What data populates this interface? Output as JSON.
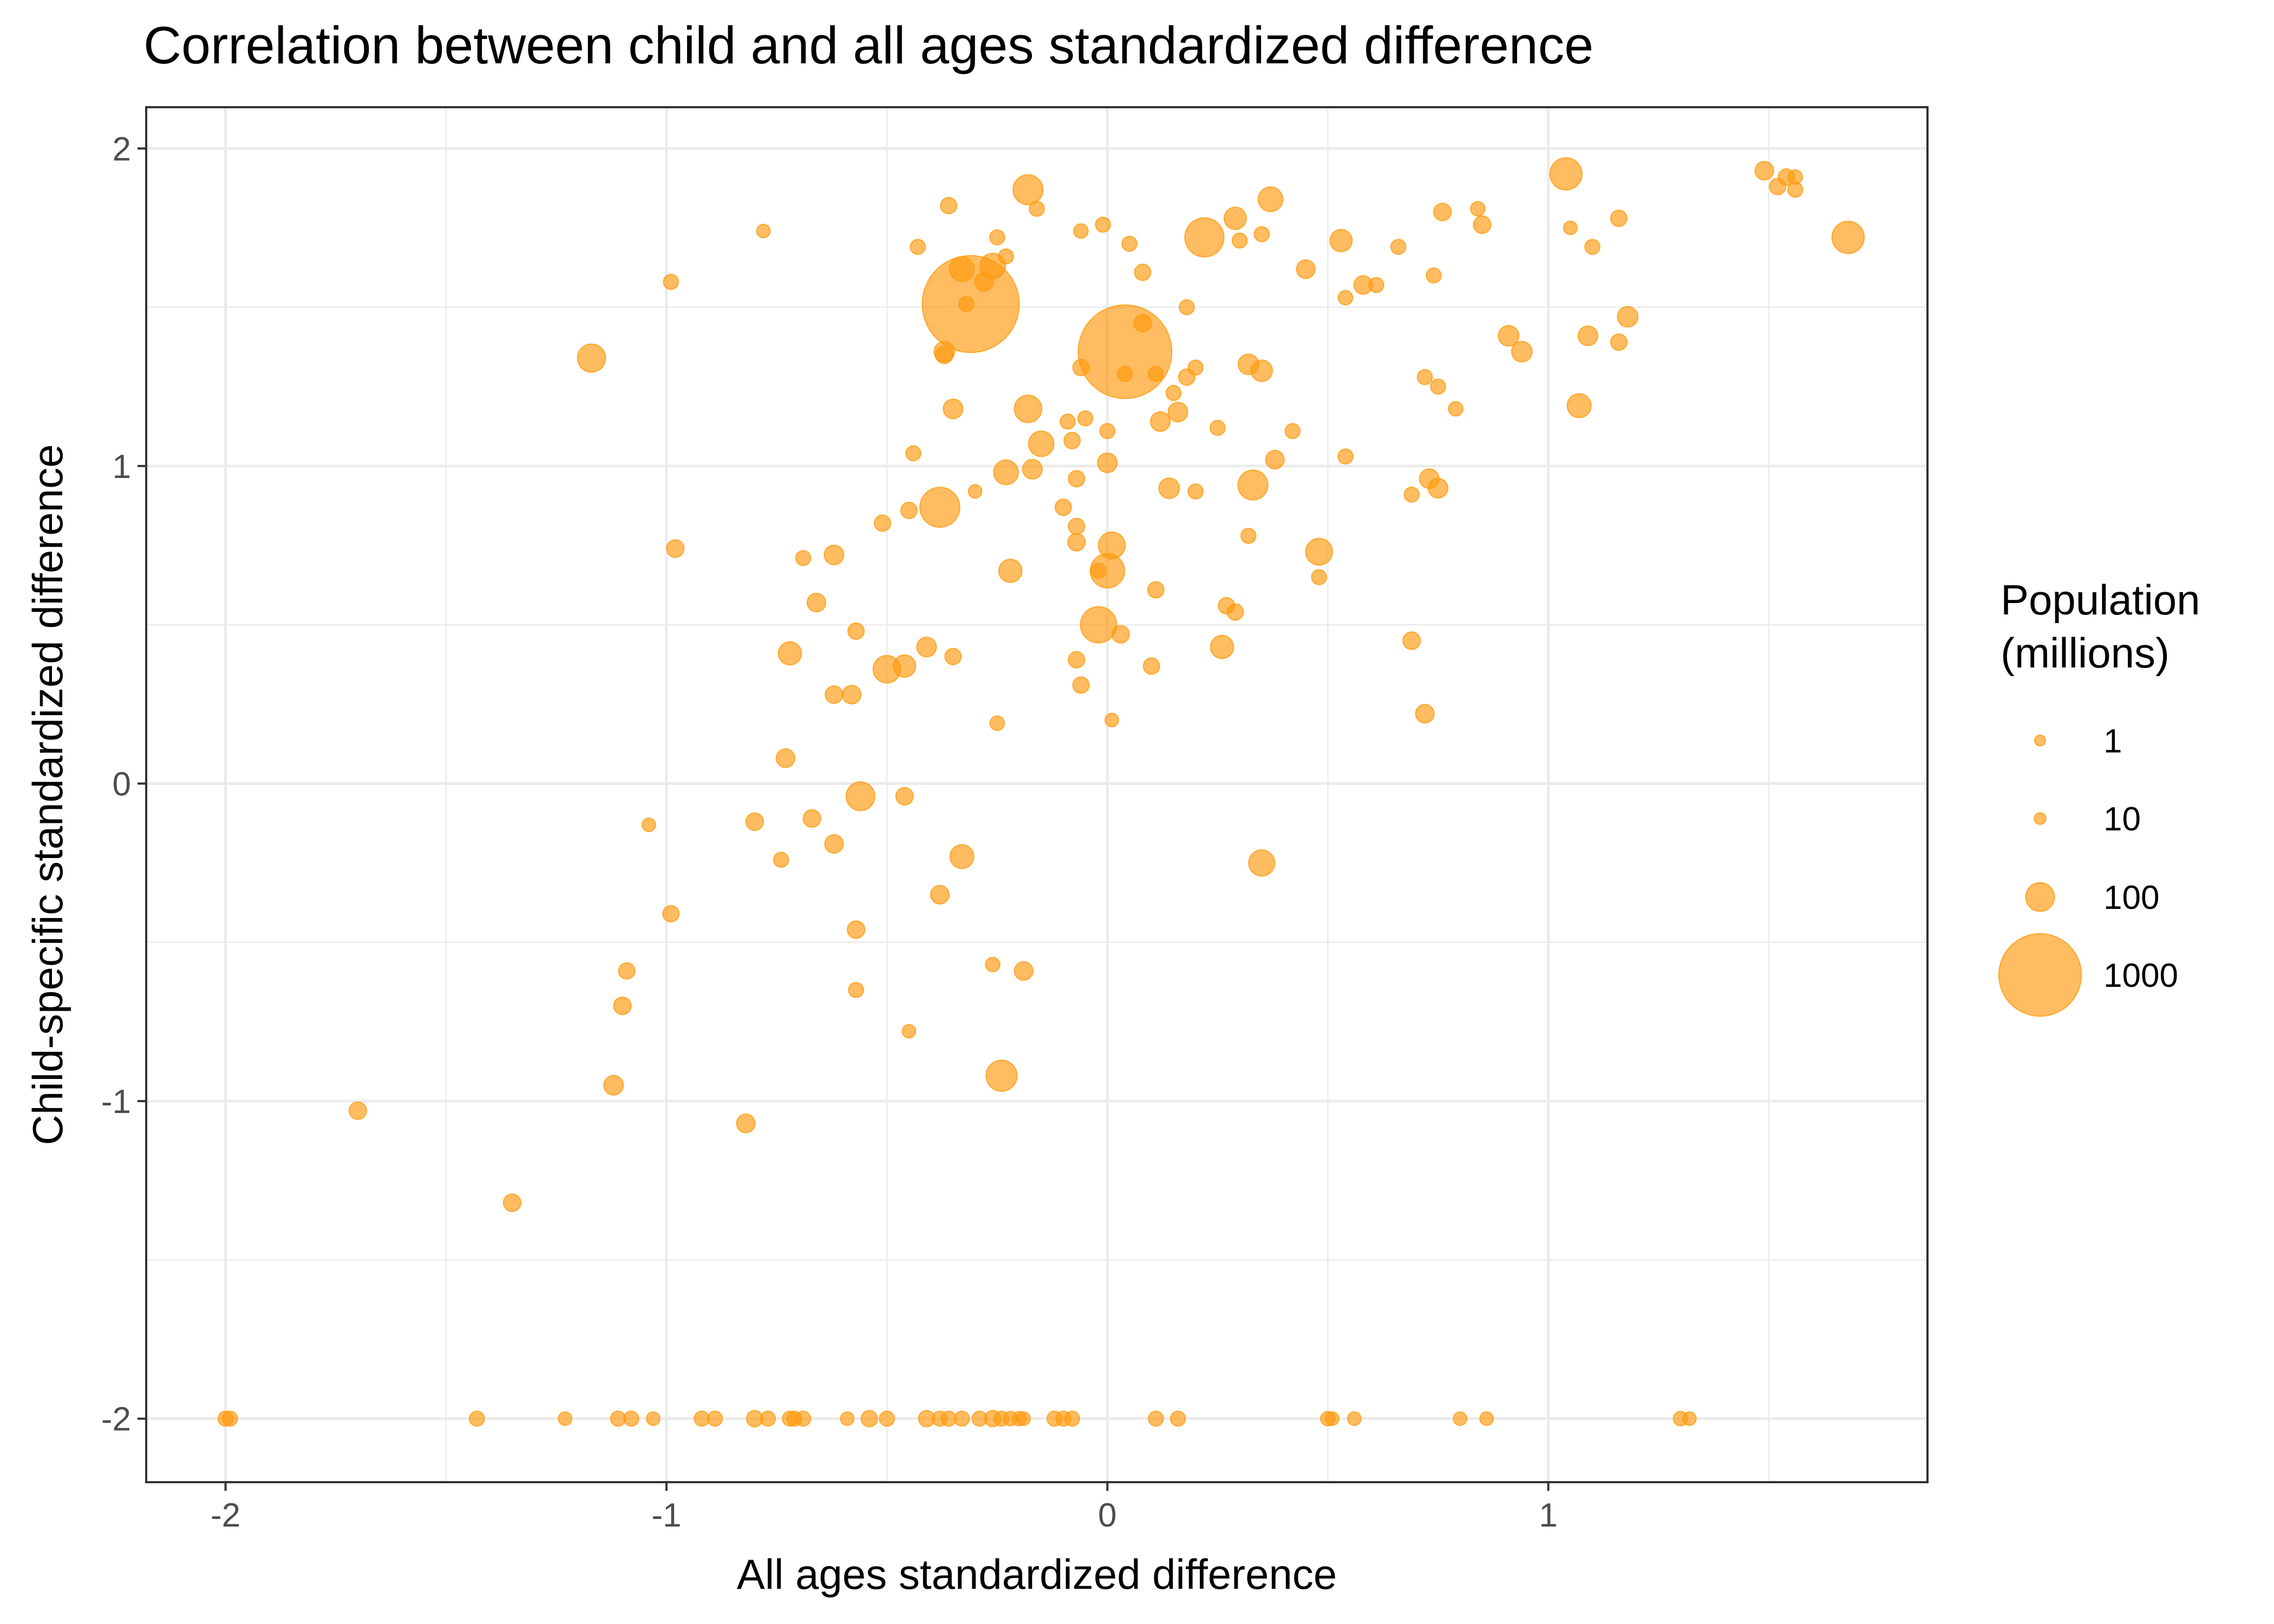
{
  "chart_data": {
    "type": "scatter",
    "title": "Correlation between child and all ages standardized difference",
    "xlabel": "All ages standardized difference",
    "ylabel": "Child-specific standardized difference",
    "xlim": [
      -2.18,
      1.86
    ],
    "ylim": [
      -2.2,
      2.13
    ],
    "x_ticks": [
      -2,
      -1,
      0,
      1
    ],
    "x_tick_labels": [
      "-2",
      "-1",
      "0",
      "1"
    ],
    "y_ticks": [
      2,
      1,
      0,
      -1,
      -2
    ],
    "y_tick_labels": [
      "2",
      "1",
      "0",
      "-1",
      "-2"
    ],
    "grid": true,
    "point_color": "#ff9a0e",
    "legend": {
      "title_lines": [
        "Population",
        "(millions)"
      ],
      "position": "right",
      "entries": [
        {
          "label": "1",
          "size": 1
        },
        {
          "label": "10",
          "size": 10
        },
        {
          "label": "100",
          "size": 100
        },
        {
          "label": "1000",
          "size": 1000
        }
      ]
    },
    "points": [
      {
        "x": -0.31,
        "y": 1.51,
        "size": 1400
      },
      {
        "x": 0.04,
        "y": 1.36,
        "size": 1300
      },
      {
        "x": -0.38,
        "y": 0.87,
        "size": 210
      },
      {
        "x": 1.04,
        "y": 1.92,
        "size": 130
      },
      {
        "x": 0.22,
        "y": 1.72,
        "size": 200
      },
      {
        "x": 1.68,
        "y": 1.72,
        "size": 130
      },
      {
        "x": -0.18,
        "y": 1.87,
        "size": 110
      },
      {
        "x": -1.17,
        "y": 1.34,
        "size": 95
      },
      {
        "x": -0.02,
        "y": 0.5,
        "size": 170
      },
      {
        "x": 0.0,
        "y": 0.67,
        "size": 150
      },
      {
        "x": -0.24,
        "y": -0.92,
        "size": 120
      },
      {
        "x": 0.35,
        "y": -0.25,
        "size": 80
      },
      {
        "x": -0.56,
        "y": -0.04,
        "size": 100
      },
      {
        "x": -0.5,
        "y": 0.36,
        "size": 90
      },
      {
        "x": 0.33,
        "y": 0.94,
        "size": 110
      },
      {
        "x": -0.23,
        "y": 0.98,
        "size": 70
      },
      {
        "x": -0.18,
        "y": 1.18,
        "size": 90
      },
      {
        "x": -0.15,
        "y": 1.07,
        "size": 75
      },
      {
        "x": 0.48,
        "y": 0.73,
        "size": 85
      },
      {
        "x": 0.01,
        "y": 0.75,
        "size": 85
      },
      {
        "x": -0.33,
        "y": -0.23,
        "size": 65
      },
      {
        "x": -0.26,
        "y": 1.63,
        "size": 75
      },
      {
        "x": -0.33,
        "y": 1.62,
        "size": 70
      },
      {
        "x": 0.37,
        "y": 1.84,
        "size": 70
      },
      {
        "x": 0.29,
        "y": 1.78,
        "size": 55
      },
      {
        "x": 0.53,
        "y": 1.71,
        "size": 55
      },
      {
        "x": -0.22,
        "y": 0.67,
        "size": 60
      },
      {
        "x": -0.72,
        "y": 0.41,
        "size": 60
      },
      {
        "x": 0.26,
        "y": 0.43,
        "size": 60
      },
      {
        "x": 0.35,
        "y": 1.3,
        "size": 50
      },
      {
        "x": 0.32,
        "y": 1.32,
        "size": 45
      },
      {
        "x": 1.07,
        "y": 1.19,
        "size": 65
      },
      {
        "x": 0.91,
        "y": 1.41,
        "size": 45
      },
      {
        "x": 0.94,
        "y": 1.36,
        "size": 45
      },
      {
        "x": 1.18,
        "y": 1.47,
        "size": 45
      },
      {
        "x": 1.09,
        "y": 1.41,
        "size": 40
      },
      {
        "x": 0.14,
        "y": 0.93,
        "size": 45
      },
      {
        "x": 0.75,
        "y": 0.93,
        "size": 40
      },
      {
        "x": 0.73,
        "y": 0.96,
        "size": 40
      },
      {
        "x": -0.37,
        "y": 1.36,
        "size": 45
      },
      {
        "x": -0.46,
        "y": 0.37,
        "size": 55
      },
      {
        "x": -0.41,
        "y": 0.43,
        "size": 40
      },
      {
        "x": -0.28,
        "y": 1.58,
        "size": 35
      },
      {
        "x": 0.0,
        "y": 1.01,
        "size": 40
      },
      {
        "x": -0.17,
        "y": 0.99,
        "size": 40
      },
      {
        "x": 0.12,
        "y": 1.14,
        "size": 40
      },
      {
        "x": 0.16,
        "y": 1.17,
        "size": 40
      },
      {
        "x": -0.35,
        "y": 1.18,
        "size": 40
      },
      {
        "x": -0.62,
        "y": 0.72,
        "size": 40
      },
      {
        "x": -0.66,
        "y": 0.57,
        "size": 35
      },
      {
        "x": -0.58,
        "y": 0.28,
        "size": 35
      },
      {
        "x": -0.62,
        "y": 0.28,
        "size": 30
      },
      {
        "x": -0.73,
        "y": 0.08,
        "size": 35
      },
      {
        "x": -0.62,
        "y": -0.19,
        "size": 35
      },
      {
        "x": -0.67,
        "y": -0.11,
        "size": 30
      },
      {
        "x": -0.8,
        "y": -0.12,
        "size": 30
      },
      {
        "x": -0.46,
        "y": -0.04,
        "size": 30
      },
      {
        "x": -0.38,
        "y": -0.35,
        "size": 35
      },
      {
        "x": -0.57,
        "y": -0.46,
        "size": 30
      },
      {
        "x": -0.19,
        "y": -0.59,
        "size": 35
      },
      {
        "x": -0.98,
        "y": 0.74,
        "size": 30
      },
      {
        "x": -1.12,
        "y": -0.95,
        "size": 40
      },
      {
        "x": -0.82,
        "y": -1.07,
        "size": 35
      },
      {
        "x": -1.35,
        "y": -1.32,
        "size": 30
      },
      {
        "x": -1.7,
        "y": -1.03,
        "size": 30
      },
      {
        "x": -1.09,
        "y": -0.59,
        "size": 25
      },
      {
        "x": -1.1,
        "y": -0.7,
        "size": 30
      },
      {
        "x": -0.99,
        "y": -0.41,
        "size": 25
      },
      {
        "x": 0.69,
        "y": 0.45,
        "size": 30
      },
      {
        "x": 0.72,
        "y": 0.22,
        "size": 35
      },
      {
        "x": 0.03,
        "y": 0.47,
        "size": 30
      },
      {
        "x": 0.1,
        "y": 0.37,
        "size": 25
      },
      {
        "x": -0.07,
        "y": 0.39,
        "size": 25
      },
      {
        "x": -0.06,
        "y": 0.31,
        "size": 25
      },
      {
        "x": 0.45,
        "y": 1.62,
        "size": 35
      },
      {
        "x": 0.58,
        "y": 1.57,
        "size": 35
      },
      {
        "x": 0.08,
        "y": 1.45,
        "size": 30
      },
      {
        "x": 0.08,
        "y": 1.61,
        "size": 25
      },
      {
        "x": 0.38,
        "y": 1.02,
        "size": 35
      },
      {
        "x": 1.49,
        "y": 1.93,
        "size": 35
      },
      {
        "x": 0.76,
        "y": 1.8,
        "size": 30
      },
      {
        "x": 0.85,
        "y": 1.76,
        "size": 30
      },
      {
        "x": -0.37,
        "y": 1.35,
        "size": 30
      },
      {
        "x": -0.57,
        "y": 0.48,
        "size": 25
      },
      {
        "x": -0.35,
        "y": 0.4,
        "size": 25
      },
      {
        "x": -0.51,
        "y": 0.82,
        "size": 25
      },
      {
        "x": -0.69,
        "y": 0.71,
        "size": 20
      },
      {
        "x": -0.45,
        "y": 0.86,
        "size": 25
      },
      {
        "x": -0.44,
        "y": 1.04,
        "size": 20
      },
      {
        "x": -0.07,
        "y": 0.76,
        "size": 30
      },
      {
        "x": -0.07,
        "y": 0.81,
        "size": 25
      },
      {
        "x": -0.1,
        "y": 0.87,
        "size": 25
      },
      {
        "x": -0.07,
        "y": 0.96,
        "size": 25
      },
      {
        "x": -0.09,
        "y": 1.14,
        "size": 20
      },
      {
        "x": -0.08,
        "y": 1.08,
        "size": 25
      },
      {
        "x": 0.0,
        "y": 1.11,
        "size": 20
      },
      {
        "x": -0.05,
        "y": 1.15,
        "size": 20
      },
      {
        "x": -0.02,
        "y": 0.67,
        "size": 20
      },
      {
        "x": 0.11,
        "y": 0.61,
        "size": 25
      },
      {
        "x": 0.27,
        "y": 0.56,
        "size": 25
      },
      {
        "x": 0.29,
        "y": 0.54,
        "size": 25
      },
      {
        "x": 0.48,
        "y": 0.65,
        "size": 20
      },
      {
        "x": 0.32,
        "y": 0.78,
        "size": 20
      },
      {
        "x": 0.2,
        "y": 0.92,
        "size": 20
      },
      {
        "x": 0.25,
        "y": 1.12,
        "size": 20
      },
      {
        "x": 0.42,
        "y": 1.11,
        "size": 20
      },
      {
        "x": 0.54,
        "y": 1.03,
        "size": 20
      },
      {
        "x": 0.69,
        "y": 0.91,
        "size": 20
      },
      {
        "x": 0.15,
        "y": 1.23,
        "size": 20
      },
      {
        "x": 0.18,
        "y": 1.28,
        "size": 25
      },
      {
        "x": 0.2,
        "y": 1.31,
        "size": 20
      },
      {
        "x": 0.11,
        "y": 1.29,
        "size": 20
      },
      {
        "x": 0.04,
        "y": 1.29,
        "size": 20
      },
      {
        "x": -0.06,
        "y": 1.31,
        "size": 25
      },
      {
        "x": 0.18,
        "y": 1.5,
        "size": 20
      },
      {
        "x": 0.75,
        "y": 1.25,
        "size": 20
      },
      {
        "x": 0.72,
        "y": 1.28,
        "size": 20
      },
      {
        "x": 0.79,
        "y": 1.18,
        "size": 18
      },
      {
        "x": 0.74,
        "y": 1.6,
        "size": 20
      },
      {
        "x": 0.61,
        "y": 1.57,
        "size": 20
      },
      {
        "x": 0.54,
        "y": 1.53,
        "size": 18
      },
      {
        "x": 0.66,
        "y": 1.69,
        "size": 20
      },
      {
        "x": 0.84,
        "y": 1.81,
        "size": 18
      },
      {
        "x": 1.16,
        "y": 1.78,
        "size": 25
      },
      {
        "x": 1.1,
        "y": 1.69,
        "size": 20
      },
      {
        "x": 1.05,
        "y": 1.75,
        "size": 15
      },
      {
        "x": 1.16,
        "y": 1.39,
        "size": 25
      },
      {
        "x": 1.52,
        "y": 1.88,
        "size": 25
      },
      {
        "x": 1.54,
        "y": 1.91,
        "size": 25
      },
      {
        "x": 1.56,
        "y": 1.87,
        "size": 20
      },
      {
        "x": 1.56,
        "y": 1.91,
        "size": 18
      },
      {
        "x": 0.3,
        "y": 1.71,
        "size": 20
      },
      {
        "x": 0.35,
        "y": 1.73,
        "size": 20
      },
      {
        "x": 0.05,
        "y": 1.7,
        "size": 20
      },
      {
        "x": -0.01,
        "y": 1.76,
        "size": 20
      },
      {
        "x": -0.06,
        "y": 1.74,
        "size": 18
      },
      {
        "x": -0.16,
        "y": 1.81,
        "size": 20
      },
      {
        "x": -0.36,
        "y": 1.82,
        "size": 25
      },
      {
        "x": -0.43,
        "y": 1.69,
        "size": 20
      },
      {
        "x": -0.25,
        "y": 1.72,
        "size": 20
      },
      {
        "x": -0.23,
        "y": 1.66,
        "size": 20
      },
      {
        "x": -0.32,
        "y": 1.51,
        "size": 20
      },
      {
        "x": -0.78,
        "y": 1.74,
        "size": 15
      },
      {
        "x": -0.99,
        "y": 1.58,
        "size": 20
      },
      {
        "x": -0.3,
        "y": 0.92,
        "size": 15
      },
      {
        "x": -1.04,
        "y": -0.13,
        "size": 15
      },
      {
        "x": -0.74,
        "y": -0.24,
        "size": 20
      },
      {
        "x": -0.57,
        "y": -0.65,
        "size": 20
      },
      {
        "x": -0.45,
        "y": -0.78,
        "size": 15
      },
      {
        "x": -0.26,
        "y": -0.57,
        "size": 18
      },
      {
        "x": -0.25,
        "y": 0.19,
        "size": 18
      },
      {
        "x": 0.01,
        "y": 0.2,
        "size": 15
      },
      {
        "x": -2.0,
        "y": -2.0,
        "size": 20
      },
      {
        "x": -1.99,
        "y": -2.0,
        "size": 20
      },
      {
        "x": -1.43,
        "y": -2.0,
        "size": 20
      },
      {
        "x": -1.23,
        "y": -2.0,
        "size": 15
      },
      {
        "x": -1.11,
        "y": -2.0,
        "size": 20
      },
      {
        "x": -1.08,
        "y": -2.0,
        "size": 20
      },
      {
        "x": -1.03,
        "y": -2.0,
        "size": 15
      },
      {
        "x": -0.92,
        "y": -2.0,
        "size": 20
      },
      {
        "x": -0.89,
        "y": -2.0,
        "size": 20
      },
      {
        "x": -0.8,
        "y": -2.0,
        "size": 25
      },
      {
        "x": -0.77,
        "y": -2.0,
        "size": 20
      },
      {
        "x": -0.72,
        "y": -2.0,
        "size": 20
      },
      {
        "x": -0.71,
        "y": -2.0,
        "size": 20
      },
      {
        "x": -0.69,
        "y": -2.0,
        "size": 20
      },
      {
        "x": -0.59,
        "y": -2.0,
        "size": 15
      },
      {
        "x": -0.54,
        "y": -2.0,
        "size": 25
      },
      {
        "x": -0.5,
        "y": -2.0,
        "size": 20
      },
      {
        "x": -0.41,
        "y": -2.0,
        "size": 25
      },
      {
        "x": -0.38,
        "y": -2.0,
        "size": 20
      },
      {
        "x": -0.36,
        "y": -2.0,
        "size": 20
      },
      {
        "x": -0.33,
        "y": -2.0,
        "size": 20
      },
      {
        "x": -0.29,
        "y": -2.0,
        "size": 20
      },
      {
        "x": -0.26,
        "y": -2.0,
        "size": 25
      },
      {
        "x": -0.24,
        "y": -2.0,
        "size": 20
      },
      {
        "x": -0.22,
        "y": -2.0,
        "size": 18
      },
      {
        "x": -0.2,
        "y": -2.0,
        "size": 18
      },
      {
        "x": -0.19,
        "y": -2.0,
        "size": 15
      },
      {
        "x": -0.12,
        "y": -2.0,
        "size": 20
      },
      {
        "x": -0.1,
        "y": -2.0,
        "size": 20
      },
      {
        "x": -0.08,
        "y": -2.0,
        "size": 20
      },
      {
        "x": 0.11,
        "y": -2.0,
        "size": 20
      },
      {
        "x": 0.16,
        "y": -2.0,
        "size": 20
      },
      {
        "x": 0.5,
        "y": -2.0,
        "size": 18
      },
      {
        "x": 0.51,
        "y": -2.0,
        "size": 15
      },
      {
        "x": 0.56,
        "y": -2.0,
        "size": 15
      },
      {
        "x": 0.8,
        "y": -2.0,
        "size": 15
      },
      {
        "x": 0.86,
        "y": -2.0,
        "size": 15
      },
      {
        "x": 1.3,
        "y": -2.0,
        "size": 18
      },
      {
        "x": 1.32,
        "y": -2.0,
        "size": 15
      }
    ]
  }
}
